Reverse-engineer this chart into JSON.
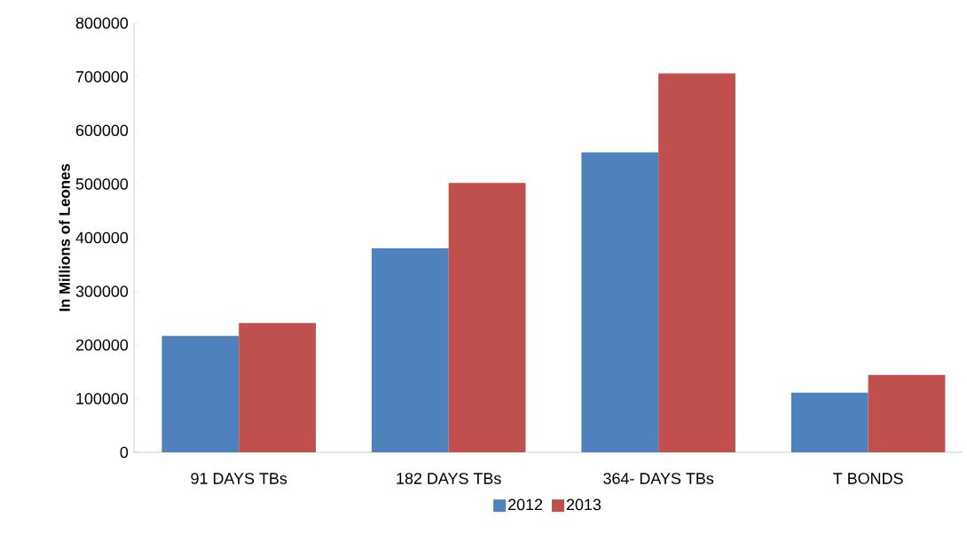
{
  "chart_data": {
    "type": "bar",
    "ylabel": "In Millions of Leones",
    "categories": [
      "91 DAYS TBs",
      "182 DAYS TBs",
      "364- DAYS TBs",
      "T BONDS"
    ],
    "series": [
      {
        "name": "2012",
        "color": "#4f81bd",
        "values": [
          217000,
          380000,
          559000,
          111000
        ]
      },
      {
        "name": "2013",
        "color": "#c0504d",
        "values": [
          241000,
          502000,
          706000,
          144000
        ]
      }
    ],
    "ylim": [
      0,
      800000
    ],
    "yticks": [
      0,
      100000,
      200000,
      300000,
      400000,
      500000,
      600000,
      700000,
      800000
    ],
    "grid": false,
    "legend": "bottom"
  }
}
